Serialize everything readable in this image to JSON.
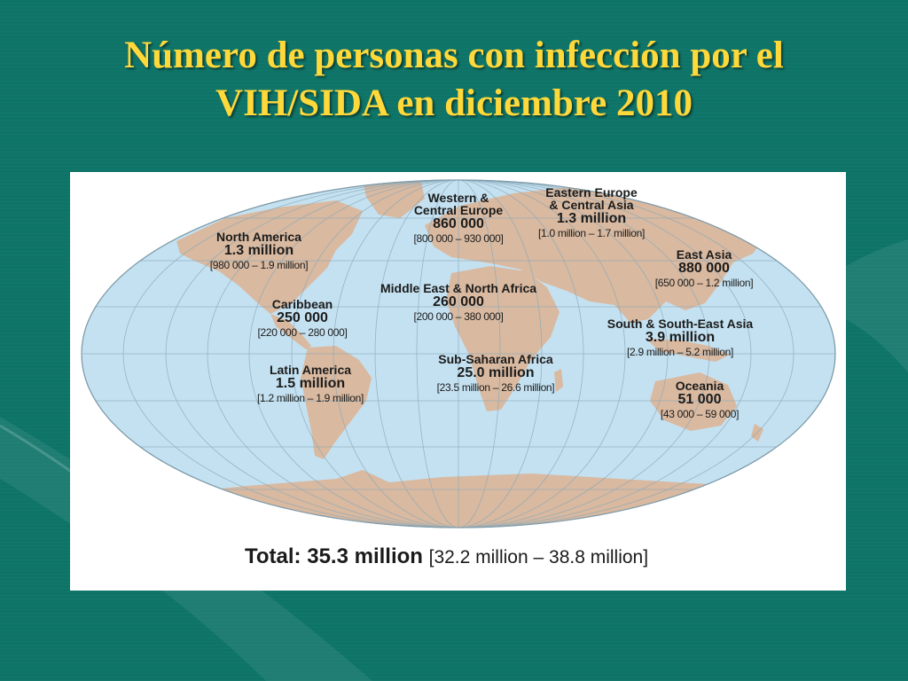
{
  "slide": {
    "title_line1": "Número de personas con infección por el",
    "title_line2": "VIH/SIDA en diciembre 2010"
  },
  "colors": {
    "background": "#0e7468",
    "title": "#ffd83a",
    "ocean": "#c4e1f1",
    "land": "#d9b9a0"
  },
  "regions": [
    {
      "id": "north-america",
      "name": "North America",
      "value": "1.3 million",
      "range": "[980 000 – 1.9 million]"
    },
    {
      "id": "western-central-europe",
      "name_line1": "Western &",
      "name_line2": "Central Europe",
      "value": "860 000",
      "range": "[800 000 – 930 000]"
    },
    {
      "id": "eastern-europe-central-asia",
      "name_line1": "Eastern Europe",
      "name_line2": "& Central Asia",
      "value": "1.3 million",
      "range": "[1.0 million – 1.7 million]"
    },
    {
      "id": "east-asia",
      "name": "East Asia",
      "value": "880 000",
      "range": "[650 000 – 1.2 million]"
    },
    {
      "id": "caribbean",
      "name": "Caribbean",
      "value": "250 000",
      "range": "[220 000 – 280 000]"
    },
    {
      "id": "middle-east-north-africa",
      "name": "Middle East & North Africa",
      "value": "260 000",
      "range": "[200 000 – 380 000]"
    },
    {
      "id": "south-southeast-asia",
      "name": "South & South-East Asia",
      "value": "3.9 million",
      "range": "[2.9 million – 5.2 million]"
    },
    {
      "id": "latin-america",
      "name": "Latin America",
      "value": "1.5 million",
      "range": "[1.2 million – 1.9 million]"
    },
    {
      "id": "sub-saharan-africa",
      "name": "Sub-Saharan Africa",
      "value": "25.0 million",
      "range": "[23.5 million – 26.6 million]"
    },
    {
      "id": "oceania",
      "name": "Oceania",
      "value": "51 000",
      "range": "[43 000 – 59 000]"
    }
  ],
  "total": {
    "label": "Total:",
    "value": "35.3 million",
    "range": "[32.2 million – 38.8 million]"
  }
}
